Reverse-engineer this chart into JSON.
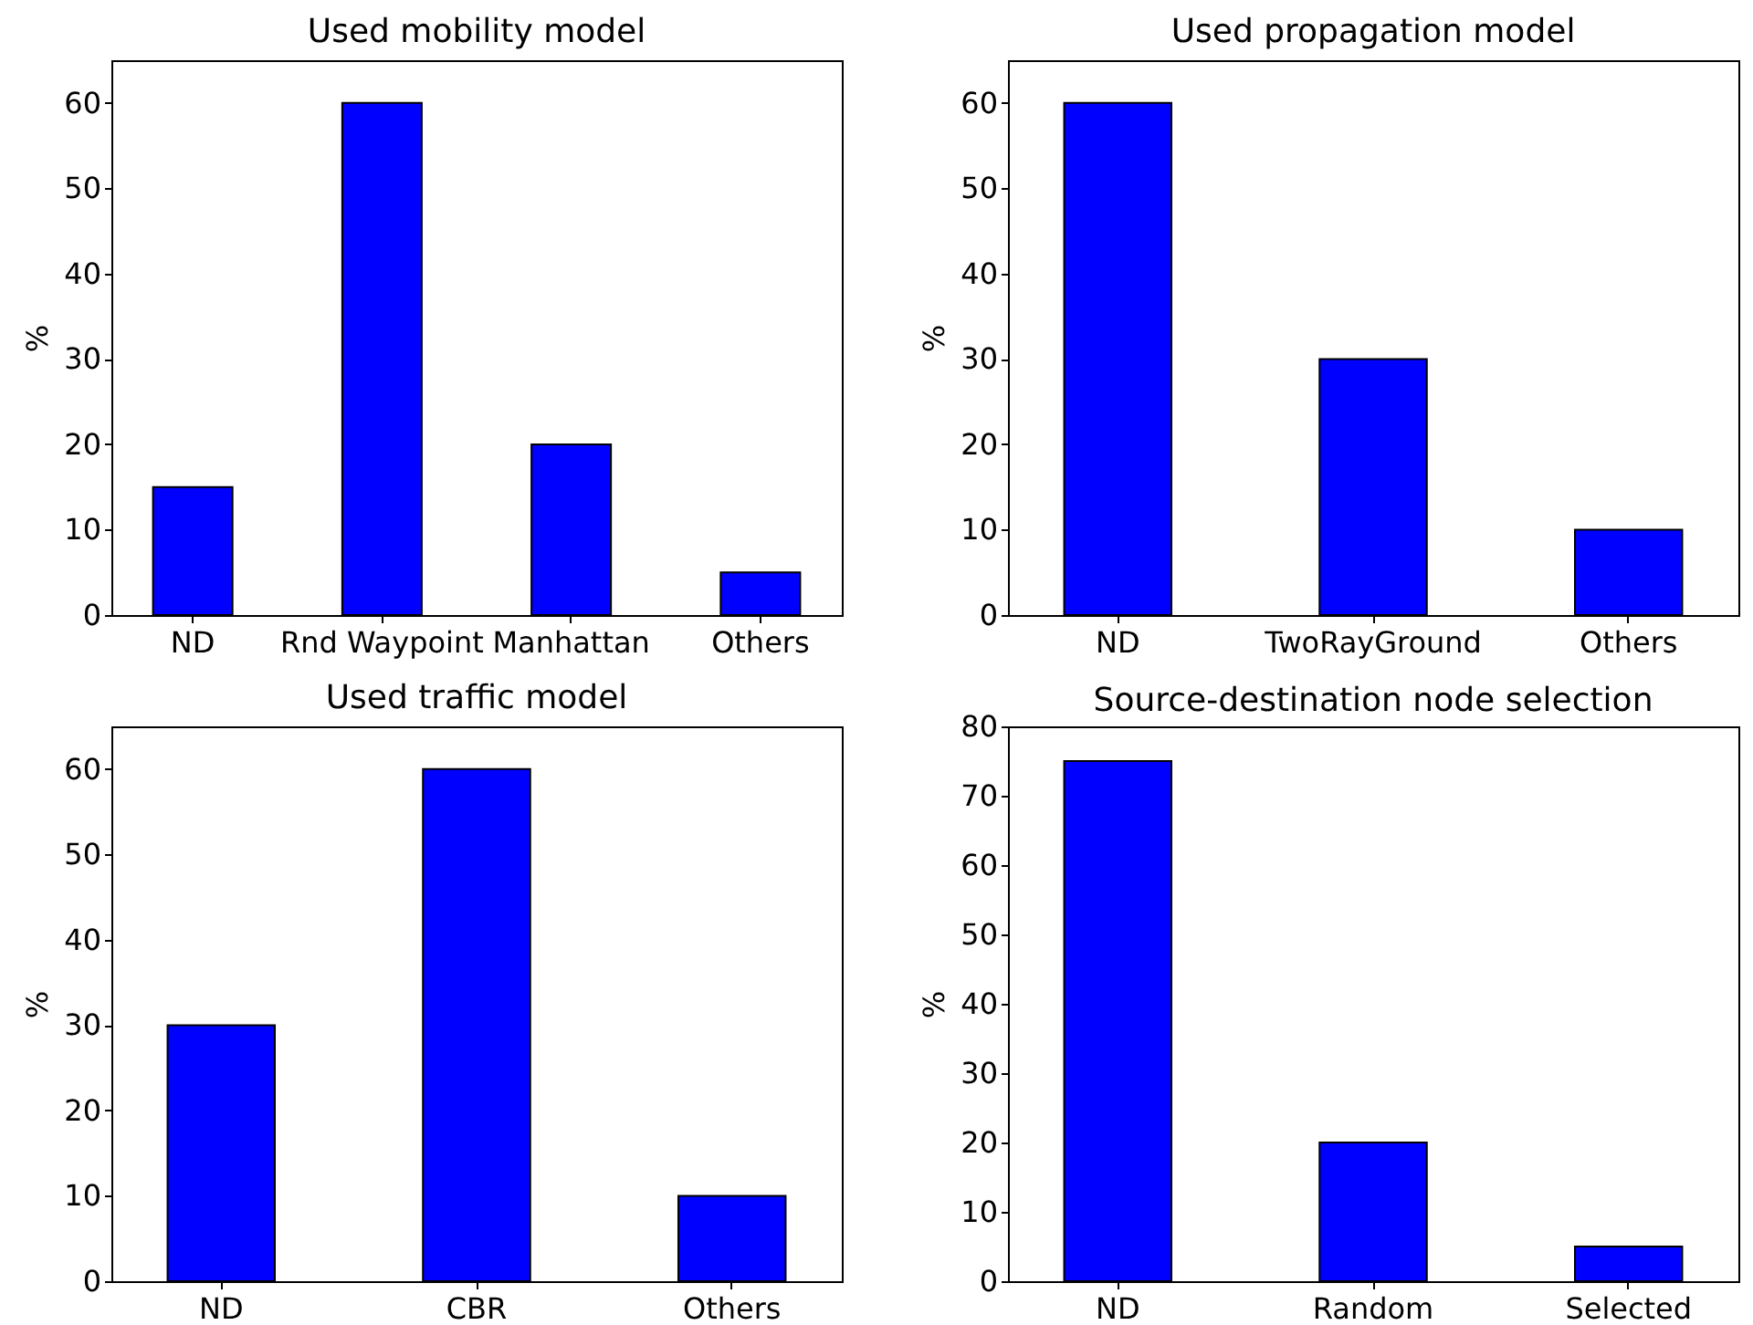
{
  "chart_data": [
    {
      "type": "bar",
      "title": "Used mobility model",
      "ylabel": "%",
      "categories": [
        "ND",
        "Rnd Waypoint",
        "Manhattan",
        "Others"
      ],
      "values": [
        15,
        60,
        20,
        5
      ],
      "color": "#0000ff",
      "ylim": [
        0,
        65
      ],
      "yticks": [
        0,
        10,
        20,
        30,
        40,
        50,
        60
      ]
    },
    {
      "type": "bar",
      "title": "Used propagation model",
      "ylabel": "%",
      "categories": [
        "ND",
        "TwoRayGround",
        "Others"
      ],
      "values": [
        60,
        30,
        10
      ],
      "color": "#0000ff",
      "ylim": [
        0,
        65
      ],
      "yticks": [
        0,
        10,
        20,
        30,
        40,
        50,
        60
      ]
    },
    {
      "type": "bar",
      "title": "Used traffic model",
      "ylabel": "%",
      "categories": [
        "ND",
        "CBR",
        "Others"
      ],
      "values": [
        30,
        60,
        10
      ],
      "color": "#0000ff",
      "ylim": [
        0,
        65
      ],
      "yticks": [
        0,
        10,
        20,
        30,
        40,
        50,
        60
      ]
    },
    {
      "type": "bar",
      "title": "Source-destination node selection",
      "ylabel": "%",
      "categories": [
        "ND",
        "Random",
        "Selected"
      ],
      "values": [
        75,
        20,
        5
      ],
      "color": "#0000ff",
      "ylim": [
        0,
        80
      ],
      "yticks": [
        0,
        10,
        20,
        30,
        40,
        50,
        60,
        70,
        80
      ]
    }
  ]
}
